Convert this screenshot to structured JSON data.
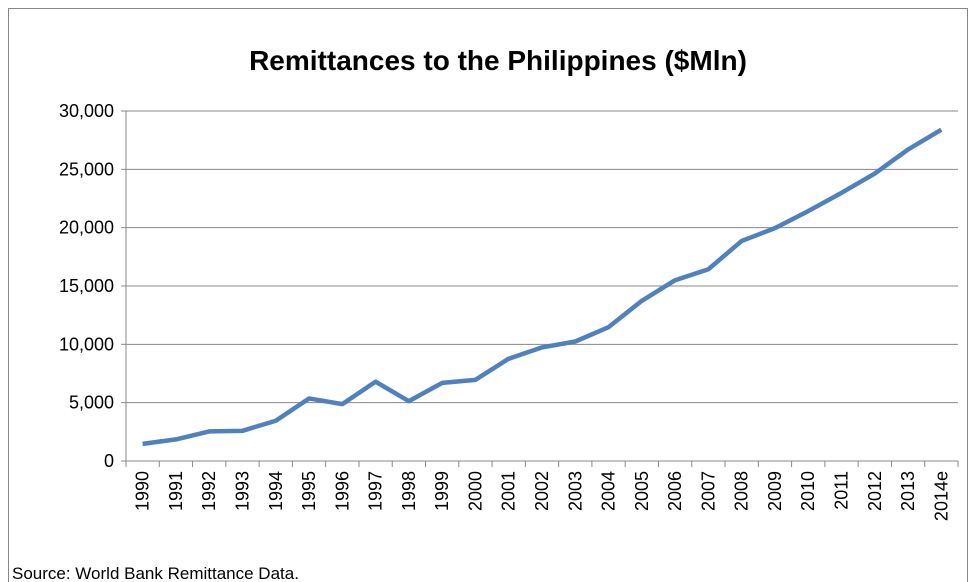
{
  "chart_data": {
    "type": "line",
    "title": "Remittances to the Philippines ($Mln)",
    "source": "Source: World Bank Remittance Data.",
    "categories": [
      "1990",
      "1991",
      "1992",
      "1993",
      "1994",
      "1995",
      "1996",
      "1997",
      "1998",
      "1999",
      "2000",
      "2001",
      "2002",
      "2003",
      "2004",
      "2005",
      "2006",
      "2007",
      "2008",
      "2009",
      "2010",
      "2011",
      "2012",
      "2013",
      "2014e"
    ],
    "series": [
      {
        "name": "Remittances",
        "color": "#4f81bd",
        "values": [
          1465,
          1850,
          2538,
          2587,
          3452,
          5360,
          4875,
          6799,
          5130,
          6693,
          6957,
          8769,
          9735,
          10243,
          11471,
          13733,
          15496,
          16437,
          18863,
          19960,
          21423,
          22984,
          24641,
          26700,
          28400
        ]
      }
    ],
    "ylim": [
      0,
      30000
    ],
    "yticks": [
      0,
      {
        "value": 5000,
        "label": "5,000"
      },
      {
        "value": 10000,
        "label": "10,000"
      },
      {
        "value": 15000,
        "label": "15,000"
      },
      {
        "value": 20000,
        "label": "20,000"
      },
      {
        "value": 25000,
        "label": "25,000"
      },
      {
        "value": 30000,
        "label": "30,000"
      }
    ],
    "grid": true
  }
}
